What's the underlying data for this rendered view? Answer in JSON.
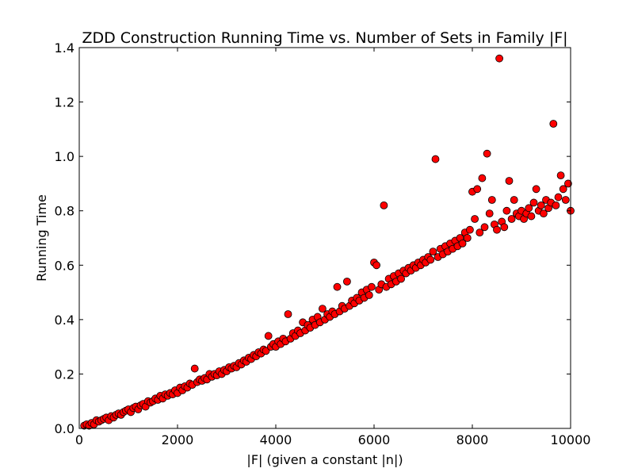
{
  "chart_data": {
    "type": "scatter",
    "title": "ZDD Construction Running Time vs. Number of Sets in Family |F|",
    "xlabel": "|F| (given a constant |n|)",
    "ylabel": "Running Time",
    "xlim": [
      0,
      10000
    ],
    "ylim": [
      0.0,
      1.4
    ],
    "xticks": [
      0,
      2000,
      4000,
      6000,
      8000,
      10000
    ],
    "xtick_labels": [
      "0",
      "2000",
      "4000",
      "6000",
      "8000",
      "10000"
    ],
    "yticks": [
      0.0,
      0.2,
      0.4,
      0.6,
      0.8,
      1.0,
      1.2,
      1.4
    ],
    "ytick_labels": [
      "0.0",
      "0.2",
      "0.4",
      "0.6",
      "0.8",
      "1.0",
      "1.2",
      "1.4"
    ],
    "grid": false,
    "legend": "none",
    "marker_color": "#ff0000",
    "marker_edge": "#000000",
    "points": [
      [
        100,
        0.01
      ],
      [
        150,
        0.015
      ],
      [
        200,
        0.01
      ],
      [
        250,
        0.02
      ],
      [
        300,
        0.015
      ],
      [
        350,
        0.03
      ],
      [
        400,
        0.025
      ],
      [
        450,
        0.03
      ],
      [
        500,
        0.035
      ],
      [
        550,
        0.04
      ],
      [
        600,
        0.03
      ],
      [
        650,
        0.045
      ],
      [
        700,
        0.04
      ],
      [
        750,
        0.05
      ],
      [
        800,
        0.055
      ],
      [
        850,
        0.05
      ],
      [
        900,
        0.06
      ],
      [
        950,
        0.065
      ],
      [
        1000,
        0.07
      ],
      [
        1050,
        0.06
      ],
      [
        1100,
        0.075
      ],
      [
        1150,
        0.08
      ],
      [
        1200,
        0.07
      ],
      [
        1250,
        0.085
      ],
      [
        1300,
        0.09
      ],
      [
        1350,
        0.08
      ],
      [
        1400,
        0.1
      ],
      [
        1450,
        0.095
      ],
      [
        1500,
        0.1
      ],
      [
        1550,
        0.11
      ],
      [
        1600,
        0.105
      ],
      [
        1650,
        0.12
      ],
      [
        1700,
        0.11
      ],
      [
        1750,
        0.125
      ],
      [
        1800,
        0.12
      ],
      [
        1850,
        0.13
      ],
      [
        1900,
        0.125
      ],
      [
        1950,
        0.14
      ],
      [
        2000,
        0.13
      ],
      [
        2050,
        0.15
      ],
      [
        2100,
        0.14
      ],
      [
        2150,
        0.155
      ],
      [
        2200,
        0.15
      ],
      [
        2250,
        0.165
      ],
      [
        2300,
        0.16
      ],
      [
        2350,
        0.22
      ],
      [
        2400,
        0.17
      ],
      [
        2450,
        0.18
      ],
      [
        2500,
        0.175
      ],
      [
        2550,
        0.185
      ],
      [
        2600,
        0.18
      ],
      [
        2650,
        0.2
      ],
      [
        2700,
        0.19
      ],
      [
        2750,
        0.2
      ],
      [
        2800,
        0.195
      ],
      [
        2850,
        0.21
      ],
      [
        2900,
        0.2
      ],
      [
        2950,
        0.215
      ],
      [
        3000,
        0.21
      ],
      [
        3050,
        0.225
      ],
      [
        3100,
        0.22
      ],
      [
        3150,
        0.23
      ],
      [
        3200,
        0.225
      ],
      [
        3250,
        0.24
      ],
      [
        3300,
        0.235
      ],
      [
        3350,
        0.25
      ],
      [
        3400,
        0.245
      ],
      [
        3450,
        0.26
      ],
      [
        3500,
        0.255
      ],
      [
        3550,
        0.27
      ],
      [
        3600,
        0.265
      ],
      [
        3650,
        0.28
      ],
      [
        3700,
        0.275
      ],
      [
        3750,
        0.29
      ],
      [
        3800,
        0.285
      ],
      [
        3850,
        0.34
      ],
      [
        3900,
        0.3
      ],
      [
        3950,
        0.31
      ],
      [
        4000,
        0.3
      ],
      [
        4050,
        0.32
      ],
      [
        4100,
        0.31
      ],
      [
        4150,
        0.33
      ],
      [
        4200,
        0.32
      ],
      [
        4250,
        0.42
      ],
      [
        4300,
        0.33
      ],
      [
        4350,
        0.35
      ],
      [
        4400,
        0.34
      ],
      [
        4450,
        0.36
      ],
      [
        4500,
        0.35
      ],
      [
        4550,
        0.39
      ],
      [
        4600,
        0.36
      ],
      [
        4650,
        0.38
      ],
      [
        4700,
        0.37
      ],
      [
        4750,
        0.4
      ],
      [
        4800,
        0.38
      ],
      [
        4850,
        0.41
      ],
      [
        4900,
        0.39
      ],
      [
        4950,
        0.44
      ],
      [
        5000,
        0.4
      ],
      [
        5050,
        0.42
      ],
      [
        5100,
        0.41
      ],
      [
        5150,
        0.43
      ],
      [
        5200,
        0.42
      ],
      [
        5250,
        0.52
      ],
      [
        5300,
        0.43
      ],
      [
        5350,
        0.45
      ],
      [
        5400,
        0.44
      ],
      [
        5450,
        0.54
      ],
      [
        5500,
        0.45
      ],
      [
        5550,
        0.47
      ],
      [
        5600,
        0.46
      ],
      [
        5650,
        0.48
      ],
      [
        5700,
        0.47
      ],
      [
        5750,
        0.5
      ],
      [
        5800,
        0.48
      ],
      [
        5850,
        0.51
      ],
      [
        5900,
        0.49
      ],
      [
        5950,
        0.52
      ],
      [
        6000,
        0.61
      ],
      [
        6050,
        0.6
      ],
      [
        6100,
        0.51
      ],
      [
        6150,
        0.53
      ],
      [
        6200,
        0.82
      ],
      [
        6250,
        0.52
      ],
      [
        6300,
        0.55
      ],
      [
        6350,
        0.53
      ],
      [
        6400,
        0.56
      ],
      [
        6450,
        0.54
      ],
      [
        6500,
        0.57
      ],
      [
        6550,
        0.55
      ],
      [
        6600,
        0.58
      ],
      [
        6650,
        0.57
      ],
      [
        6700,
        0.59
      ],
      [
        6750,
        0.58
      ],
      [
        6800,
        0.6
      ],
      [
        6850,
        0.59
      ],
      [
        6900,
        0.61
      ],
      [
        6950,
        0.6
      ],
      [
        7000,
        0.62
      ],
      [
        7050,
        0.61
      ],
      [
        7100,
        0.63
      ],
      [
        7150,
        0.62
      ],
      [
        7200,
        0.65
      ],
      [
        7250,
        0.99
      ],
      [
        7300,
        0.63
      ],
      [
        7350,
        0.66
      ],
      [
        7400,
        0.64
      ],
      [
        7450,
        0.67
      ],
      [
        7500,
        0.65
      ],
      [
        7550,
        0.68
      ],
      [
        7600,
        0.66
      ],
      [
        7650,
        0.69
      ],
      [
        7700,
        0.67
      ],
      [
        7750,
        0.7
      ],
      [
        7800,
        0.68
      ],
      [
        7850,
        0.72
      ],
      [
        7900,
        0.7
      ],
      [
        7950,
        0.73
      ],
      [
        8000,
        0.87
      ],
      [
        8050,
        0.77
      ],
      [
        8100,
        0.88
      ],
      [
        8150,
        0.72
      ],
      [
        8200,
        0.92
      ],
      [
        8250,
        0.74
      ],
      [
        8300,
        1.01
      ],
      [
        8350,
        0.79
      ],
      [
        8400,
        0.84
      ],
      [
        8450,
        0.75
      ],
      [
        8500,
        0.73
      ],
      [
        8550,
        1.36
      ],
      [
        8600,
        0.76
      ],
      [
        8650,
        0.74
      ],
      [
        8700,
        0.8
      ],
      [
        8750,
        0.91
      ],
      [
        8800,
        0.77
      ],
      [
        8850,
        0.84
      ],
      [
        8900,
        0.79
      ],
      [
        8950,
        0.78
      ],
      [
        9000,
        0.8
      ],
      [
        9050,
        0.77
      ],
      [
        9100,
        0.79
      ],
      [
        9150,
        0.81
      ],
      [
        9200,
        0.78
      ],
      [
        9250,
        0.83
      ],
      [
        9300,
        0.88
      ],
      [
        9350,
        0.8
      ],
      [
        9400,
        0.82
      ],
      [
        9450,
        0.79
      ],
      [
        9500,
        0.84
      ],
      [
        9550,
        0.81
      ],
      [
        9600,
        0.83
      ],
      [
        9650,
        1.12
      ],
      [
        9700,
        0.82
      ],
      [
        9750,
        0.85
      ],
      [
        9800,
        0.93
      ],
      [
        9850,
        0.88
      ],
      [
        9900,
        0.84
      ],
      [
        9950,
        0.9
      ],
      [
        10000,
        0.8
      ]
    ]
  }
}
